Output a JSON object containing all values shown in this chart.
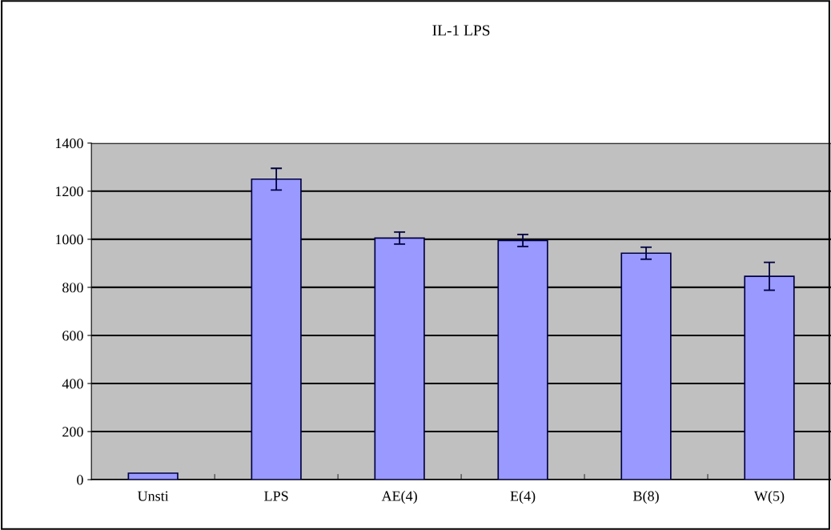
{
  "chart_data": {
    "type": "bar",
    "title": "IL-1 LPS",
    "categories": [
      "Unsti",
      "LPS",
      "AE(4)",
      "E(4)",
      "B(8)",
      "W(5)"
    ],
    "values": [
      27,
      1250,
      1005,
      995,
      942,
      846
    ],
    "errors": [
      null,
      45,
      25,
      25,
      25,
      58
    ],
    "color": "#9999ff",
    "ylim": [
      0,
      1400
    ],
    "yticks": [
      0,
      200,
      400,
      600,
      800,
      1000,
      1200,
      1400
    ],
    "grid": "y"
  }
}
